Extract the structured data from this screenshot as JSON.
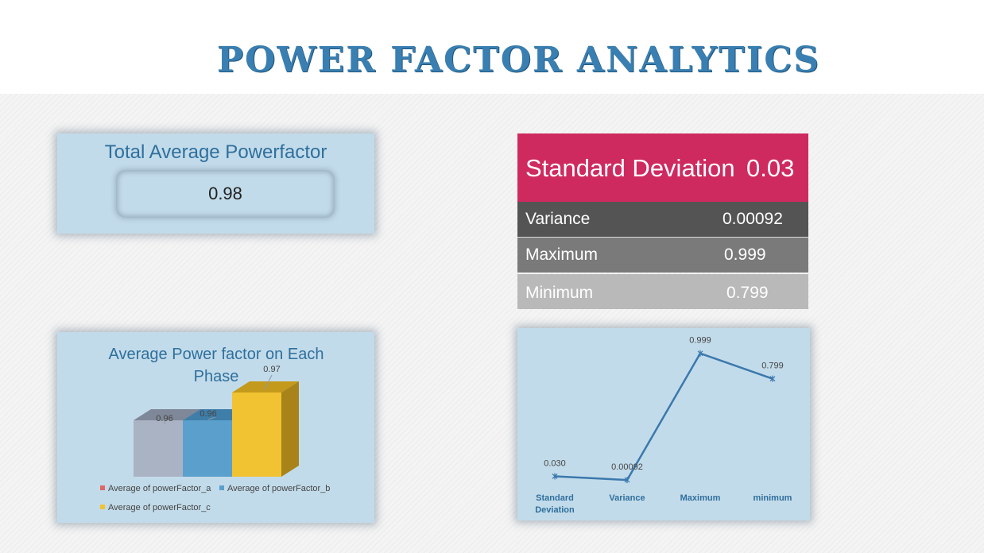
{
  "header": {
    "title": "POWER FACTOR ANALYTICS"
  },
  "kpi": {
    "title": "Total Average Powerfactor",
    "value": "0.98"
  },
  "stats": {
    "std_label": "Standard Deviation",
    "std_value": "0.03",
    "var_label": "Variance",
    "var_value": "0.00092",
    "max_label": "Maximum",
    "max_value": "0.999",
    "min_label": "Minimum",
    "min_value": "0.799"
  },
  "colors": {
    "title": "#3a7fb1",
    "card_bg": "#c2dbea",
    "std_bg": "#cf2a5f",
    "var_bg": "#545454",
    "max_bg": "#7a7a7a",
    "min_bg": "#b9b9b9",
    "bar_a": "#aab3c3",
    "bar_b": "#5b9fcc",
    "bar_c": "#f1c232",
    "line": "#3b78ad"
  },
  "chart_data": [
    {
      "type": "bar",
      "title": "Average Power factor on Each Phase",
      "categories": [
        "Average of powerFactor_a",
        "Average of powerFactor_b",
        "Average of powerFactor_c"
      ],
      "values": [
        0.96,
        0.96,
        0.97
      ],
      "data_labels": [
        "0.96",
        "0.96",
        "0.97"
      ],
      "legend": [
        "Average of powerFactor_a",
        "Average of powerFactor_b",
        "Average of powerFactor_c"
      ],
      "legend_marker_colors": [
        "#e06666",
        "#5b9fcc",
        "#f1c232"
      ],
      "ylim": [
        0.95,
        0.97
      ],
      "style": "3d-column",
      "legend_position": "bottom",
      "grid": false
    },
    {
      "type": "line",
      "title": "",
      "categories": [
        "Standard Deviation",
        "Variance",
        "Maximum",
        "minimum"
      ],
      "values": [
        0.03,
        0.00092,
        0.999,
        0.799
      ],
      "data_labels": [
        "0.030",
        "0.00092",
        "0.999",
        "0.799"
      ],
      "ylim": [
        -0.18,
        1.06
      ],
      "grid": false,
      "legend": null
    }
  ]
}
